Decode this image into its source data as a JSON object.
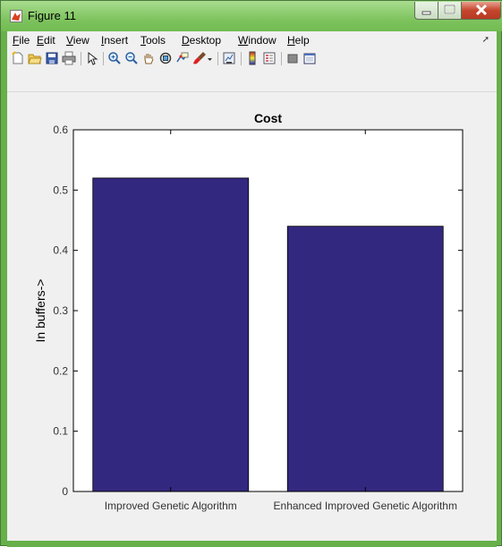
{
  "window": {
    "title": "Figure 11"
  },
  "menubar": {
    "items": [
      {
        "label": "File",
        "accel": "F",
        "rest": "ile"
      },
      {
        "label": "Edit",
        "accel": "E",
        "rest": "dit"
      },
      {
        "label": "View",
        "accel": "V",
        "rest": "iew"
      },
      {
        "label": "Insert",
        "accel": "I",
        "rest": "nsert"
      },
      {
        "label": "Tools",
        "accel": "T",
        "rest": "ools"
      },
      {
        "label": "Desktop",
        "accel": "D",
        "rest": "esktop"
      },
      {
        "label": "Window",
        "accel": "W",
        "rest": "indow"
      },
      {
        "label": "Help",
        "accel": "H",
        "rest": "elp"
      }
    ]
  },
  "toolbar": {
    "icons": [
      "new-figure-icon",
      "open-file-icon",
      "save-icon",
      "print-icon",
      "edit-plot-arrow-icon",
      "zoom-in-icon",
      "zoom-out-icon",
      "pan-hand-icon",
      "rotate-3d-icon",
      "data-cursor-icon",
      "brush-icon",
      "link-plot-icon",
      "insert-colorbar-icon",
      "insert-legend-icon",
      "hide-plot-tools-icon",
      "show-plot-tools-icon"
    ]
  },
  "chart_data": {
    "type": "bar",
    "title": "Cost",
    "xlabel": "",
    "ylabel": "In buffers->",
    "categories": [
      "Improved Genetic Algorithm",
      "Enhanced Improved Genetic Algorithm"
    ],
    "values": [
      0.52,
      0.44
    ],
    "ylim": [
      0,
      0.6
    ],
    "yticks": [
      "0",
      "0.1",
      "0.2",
      "0.3",
      "0.4",
      "0.5",
      "0.6"
    ],
    "bar_color": "#32287f",
    "grid": false
  }
}
